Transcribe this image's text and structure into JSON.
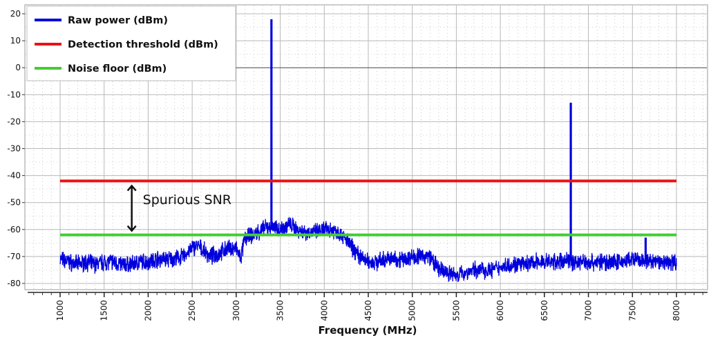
{
  "chart_data": {
    "type": "line",
    "xlabel": "Frequency (MHz)",
    "ylabel": "",
    "xlim": [
      1000,
      8000
    ],
    "ylim": [
      -80,
      20
    ],
    "x_ticks": [
      1000,
      1500,
      2000,
      2500,
      3000,
      3500,
      4000,
      4500,
      5000,
      5500,
      6000,
      6500,
      7000,
      7500,
      8000
    ],
    "x_tick_labels": [
      "1000",
      "1500",
      "2000",
      "2500",
      "3000",
      "3500",
      "4000",
      "4500",
      "5000",
      "5500",
      "6000",
      "6500",
      "7000",
      "7500",
      "8000"
    ],
    "y_ticks": [
      20,
      10,
      0,
      -10,
      -20,
      -30,
      -40,
      -50,
      -60,
      -70,
      -80
    ],
    "y_tick_labels": [
      "20",
      "10",
      "0",
      "-10",
      "-20",
      "-30",
      "-40",
      "-50",
      "-60",
      "-70",
      "-80"
    ],
    "grid": true,
    "legend_position": "top-left",
    "series": [
      {
        "name": "Raw power (dBm)",
        "color": "#0000dd",
        "x": [
          1000,
          1100,
          1200,
          1300,
          1400,
          1500,
          1600,
          1700,
          1800,
          1900,
          2000,
          2100,
          2200,
          2300,
          2400,
          2500,
          2550,
          2600,
          2700,
          2800,
          2900,
          3000,
          3050,
          3100,
          3200,
          3300,
          3380,
          3400,
          3420,
          3500,
          3600,
          3700,
          3800,
          3900,
          4000,
          4100,
          4200,
          4300,
          4400,
          4500,
          4600,
          4700,
          4800,
          4900,
          5000,
          5100,
          5200,
          5300,
          5400,
          5500,
          5600,
          5700,
          5800,
          5900,
          6000,
          6100,
          6200,
          6300,
          6400,
          6500,
          6600,
          6700,
          6780,
          6800,
          6820,
          6900,
          7000,
          7100,
          7200,
          7300,
          7400,
          7500,
          7600,
          7640,
          7650,
          7660,
          7700,
          7800,
          7900,
          8000
        ],
        "y": [
          -71,
          -72,
          -73,
          -72,
          -73,
          -72,
          -72,
          -73,
          -73,
          -72,
          -72,
          -71,
          -71,
          -71,
          -70,
          -67,
          -66,
          -67,
          -70,
          -69,
          -67,
          -67,
          -71,
          -63,
          -62,
          -60,
          -59,
          18,
          -59,
          -60,
          -58,
          -60,
          -61,
          -61,
          -60,
          -60,
          -62,
          -66,
          -70,
          -72,
          -72,
          -71,
          -71,
          -71,
          -70,
          -70,
          -70,
          -75,
          -76,
          -77,
          -76,
          -75,
          -75,
          -75,
          -74,
          -73,
          -73,
          -73,
          -72,
          -72,
          -72,
          -72,
          -71,
          -13,
          -72,
          -72,
          -72,
          -72,
          -72,
          -72,
          -72,
          -71,
          -72,
          -72,
          -63,
          -72,
          -72,
          -72,
          -72,
          -72
        ]
      },
      {
        "name": "Detection threshold (dBm)",
        "color": "#ee1111",
        "x": [
          1000,
          8000
        ],
        "y": [
          -42,
          -42
        ]
      },
      {
        "name": "Noise floor (dBm)",
        "color": "#44cc33",
        "x": [
          1000,
          8000
        ],
        "y": [
          -62,
          -62
        ]
      }
    ],
    "annotations": [
      {
        "text": "Spurious SNR",
        "x": 2000,
        "y": -49,
        "arrow_from": -42,
        "arrow_to": -62,
        "arrow_x": 1900
      }
    ]
  }
}
